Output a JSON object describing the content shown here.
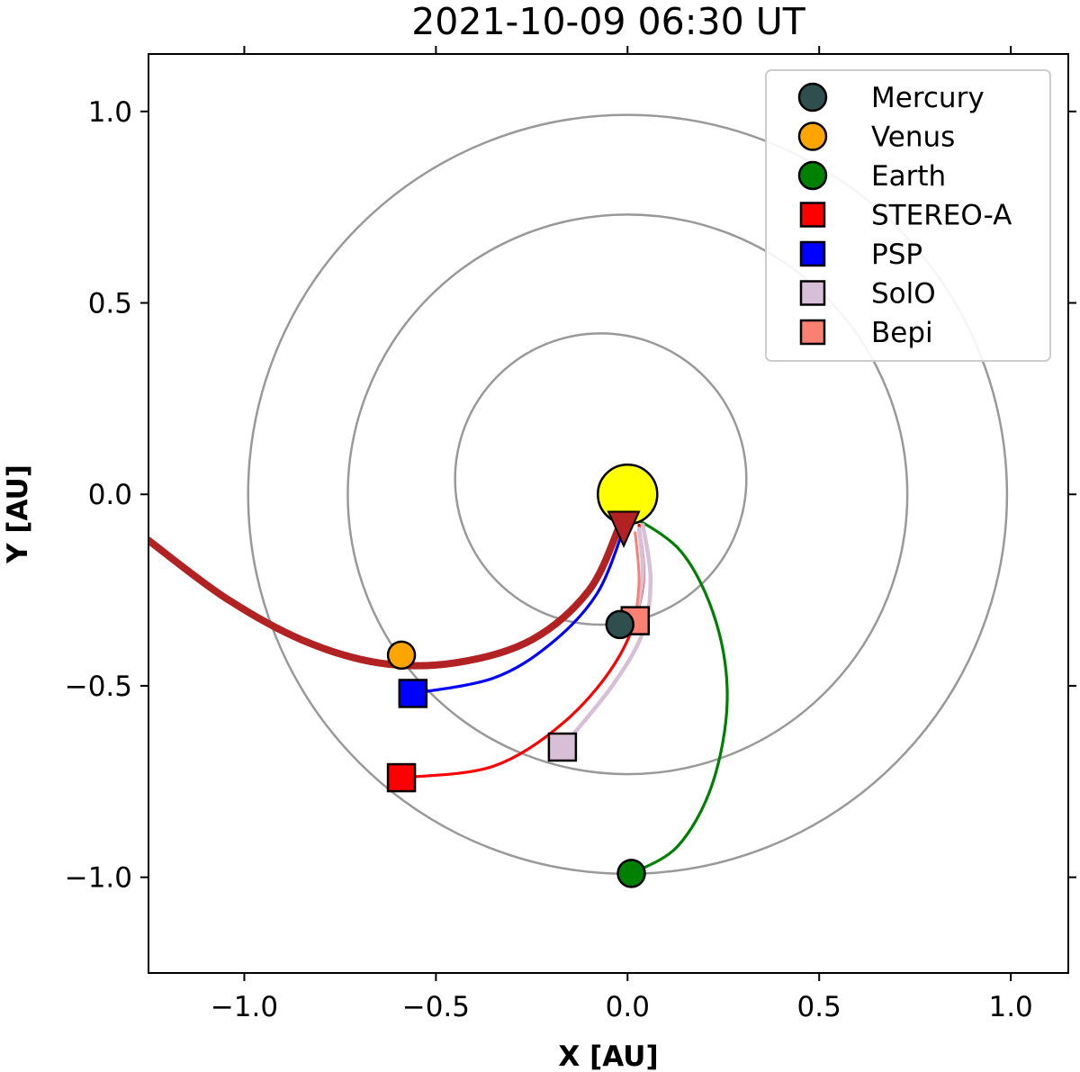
{
  "chart_data": {
    "type": "scatter",
    "title": "2021-10-09 06:30 UT",
    "xlabel": "X [AU]",
    "ylabel": "Y [AU]",
    "xlim": [
      -1.25,
      1.15
    ],
    "ylim": [
      -1.25,
      1.15
    ],
    "xticks": [
      -1.0,
      -0.5,
      0.0,
      0.5,
      1.0
    ],
    "yticks": [
      -1.0,
      -0.5,
      0.0,
      0.5,
      1.0
    ],
    "xtick_labels": [
      "−1.0",
      "−0.5",
      "0.0",
      "0.5",
      "1.0"
    ],
    "ytick_labels": [
      "−1.0",
      "−0.5",
      "0.0",
      "0.5",
      "1.0"
    ],
    "grid": false,
    "legend_position": "top-right",
    "sun": {
      "x": 0.0,
      "y": 0.0,
      "color": "#ffff00"
    },
    "orbits": [
      {
        "cx": -0.07,
        "cy": 0.04,
        "r": 0.38
      },
      {
        "cx": 0.0,
        "cy": 0.0,
        "r": 0.73
      },
      {
        "cx": 0.0,
        "cy": 0.0,
        "r": 0.99
      }
    ],
    "series": [
      {
        "name": "Mercury",
        "marker": "circle",
        "color": "#2f4f4f",
        "x": -0.02,
        "y": -0.34
      },
      {
        "name": "Venus",
        "marker": "circle",
        "color": "#ffa500",
        "x": -0.59,
        "y": -0.42
      },
      {
        "name": "Earth",
        "marker": "circle",
        "color": "#008000",
        "x": 0.01,
        "y": -0.99
      },
      {
        "name": "STEREO-A",
        "marker": "square",
        "color": "#ff0000",
        "x": -0.59,
        "y": -0.74
      },
      {
        "name": "PSP",
        "marker": "square",
        "color": "#0000ff",
        "x": -0.56,
        "y": -0.52
      },
      {
        "name": "SolO",
        "marker": "square",
        "color": "#d8bfd8",
        "x": -0.17,
        "y": -0.66
      },
      {
        "name": "Bepi",
        "marker": "square",
        "color": "#fa8072",
        "x": 0.02,
        "y": -0.33
      }
    ],
    "field_lines": [
      {
        "target": "Earth",
        "color": "#008000",
        "width": 3.2,
        "points": [
          [
            0.0,
            -0.05
          ],
          [
            0.14,
            -0.15
          ],
          [
            0.23,
            -0.33
          ],
          [
            0.26,
            -0.54
          ],
          [
            0.22,
            -0.76
          ],
          [
            0.13,
            -0.92
          ],
          [
            0.01,
            -0.99
          ]
        ]
      },
      {
        "target": "STEREO-A",
        "color": "#ff0000",
        "width": 3.2,
        "points": [
          [
            0.03,
            -0.08
          ],
          [
            0.04,
            -0.24
          ],
          [
            -0.02,
            -0.42
          ],
          [
            -0.16,
            -0.59
          ],
          [
            -0.35,
            -0.71
          ],
          [
            -0.59,
            -0.74
          ]
        ]
      },
      {
        "target": "PSP",
        "color": "#0000ff",
        "width": 3.2,
        "points": [
          [
            -0.01,
            -0.09
          ],
          [
            -0.08,
            -0.26
          ],
          [
            -0.2,
            -0.39
          ],
          [
            -0.35,
            -0.48
          ],
          [
            -0.56,
            -0.52
          ]
        ]
      },
      {
        "target": "SolO",
        "color": "#d8bfd8",
        "width": 4.5,
        "points": [
          [
            0.04,
            -0.08
          ],
          [
            0.06,
            -0.22
          ],
          [
            0.04,
            -0.36
          ],
          [
            -0.04,
            -0.5
          ],
          [
            -0.17,
            -0.66
          ]
        ]
      },
      {
        "target": "Bepi",
        "color": "#d8bfd8",
        "width": 4.5,
        "points": [
          [
            0.03,
            -0.09
          ],
          [
            0.04,
            -0.21
          ],
          [
            0.02,
            -0.33
          ]
        ]
      },
      {
        "target": "Mercury",
        "color": "#fa8072",
        "width": 3.0,
        "points": [
          [
            0.02,
            -0.1
          ],
          [
            0.03,
            -0.22
          ],
          [
            0.02,
            -0.33
          ]
        ]
      }
    ],
    "cme_arc": {
      "color": "#b22222",
      "width": 8,
      "points": [
        [
          -0.02,
          -0.08
        ],
        [
          -0.1,
          -0.25
        ],
        [
          -0.25,
          -0.38
        ],
        [
          -0.45,
          -0.44
        ],
        [
          -0.65,
          -0.44
        ],
        [
          -0.85,
          -0.38
        ],
        [
          -1.05,
          -0.27
        ],
        [
          -1.25,
          -0.12
        ]
      ]
    },
    "cme_direction": {
      "x": -0.01,
      "y": -0.09,
      "color": "#b22222"
    }
  }
}
